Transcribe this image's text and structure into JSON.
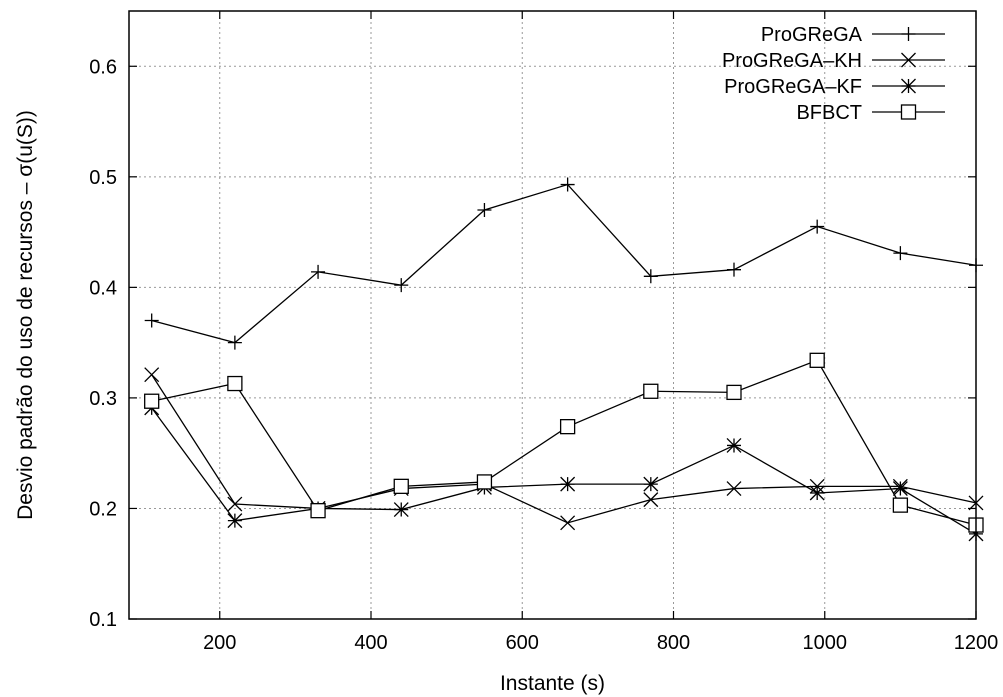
{
  "chart_data": {
    "type": "line",
    "title": "",
    "xlabel": "Instante (s)",
    "ylabel": "Desvio padrão do uso de recursos – σ(u(S))",
    "xlim": [
      80,
      1200
    ],
    "ylim": [
      0.1,
      0.65
    ],
    "xticks": [
      "200",
      "400",
      "600",
      "800",
      "1000",
      "1200"
    ],
    "yticks": [
      "0.1",
      "0.2",
      "0.3",
      "0.4",
      "0.5",
      "0.6"
    ],
    "grid": true,
    "legend_position": "top-right",
    "x": [
      110,
      220,
      330,
      440,
      550,
      660,
      770,
      880,
      990,
      1100,
      1200
    ],
    "series": [
      {
        "name": "ProGReGA",
        "marker": "plus",
        "values": [
          0.37,
          0.35,
          0.414,
          0.402,
          0.47,
          0.493,
          0.41,
          0.416,
          0.455,
          0.431,
          0.42
        ]
      },
      {
        "name": "ProGReGA–KH",
        "marker": "cross",
        "values": [
          0.321,
          0.204,
          0.2,
          0.218,
          0.222,
          0.187,
          0.208,
          0.218,
          0.22,
          0.22,
          0.205
        ]
      },
      {
        "name": "ProGReGA–KF",
        "marker": "star",
        "values": [
          0.291,
          0.189,
          0.2,
          0.199,
          0.219,
          0.222,
          0.222,
          0.257,
          0.214,
          0.218,
          0.177
        ]
      },
      {
        "name": "BFBCT",
        "marker": "square",
        "values": [
          0.297,
          0.313,
          0.198,
          0.22,
          0.224,
          0.274,
          0.306,
          0.305,
          0.334,
          0.203,
          0.185
        ]
      }
    ]
  }
}
